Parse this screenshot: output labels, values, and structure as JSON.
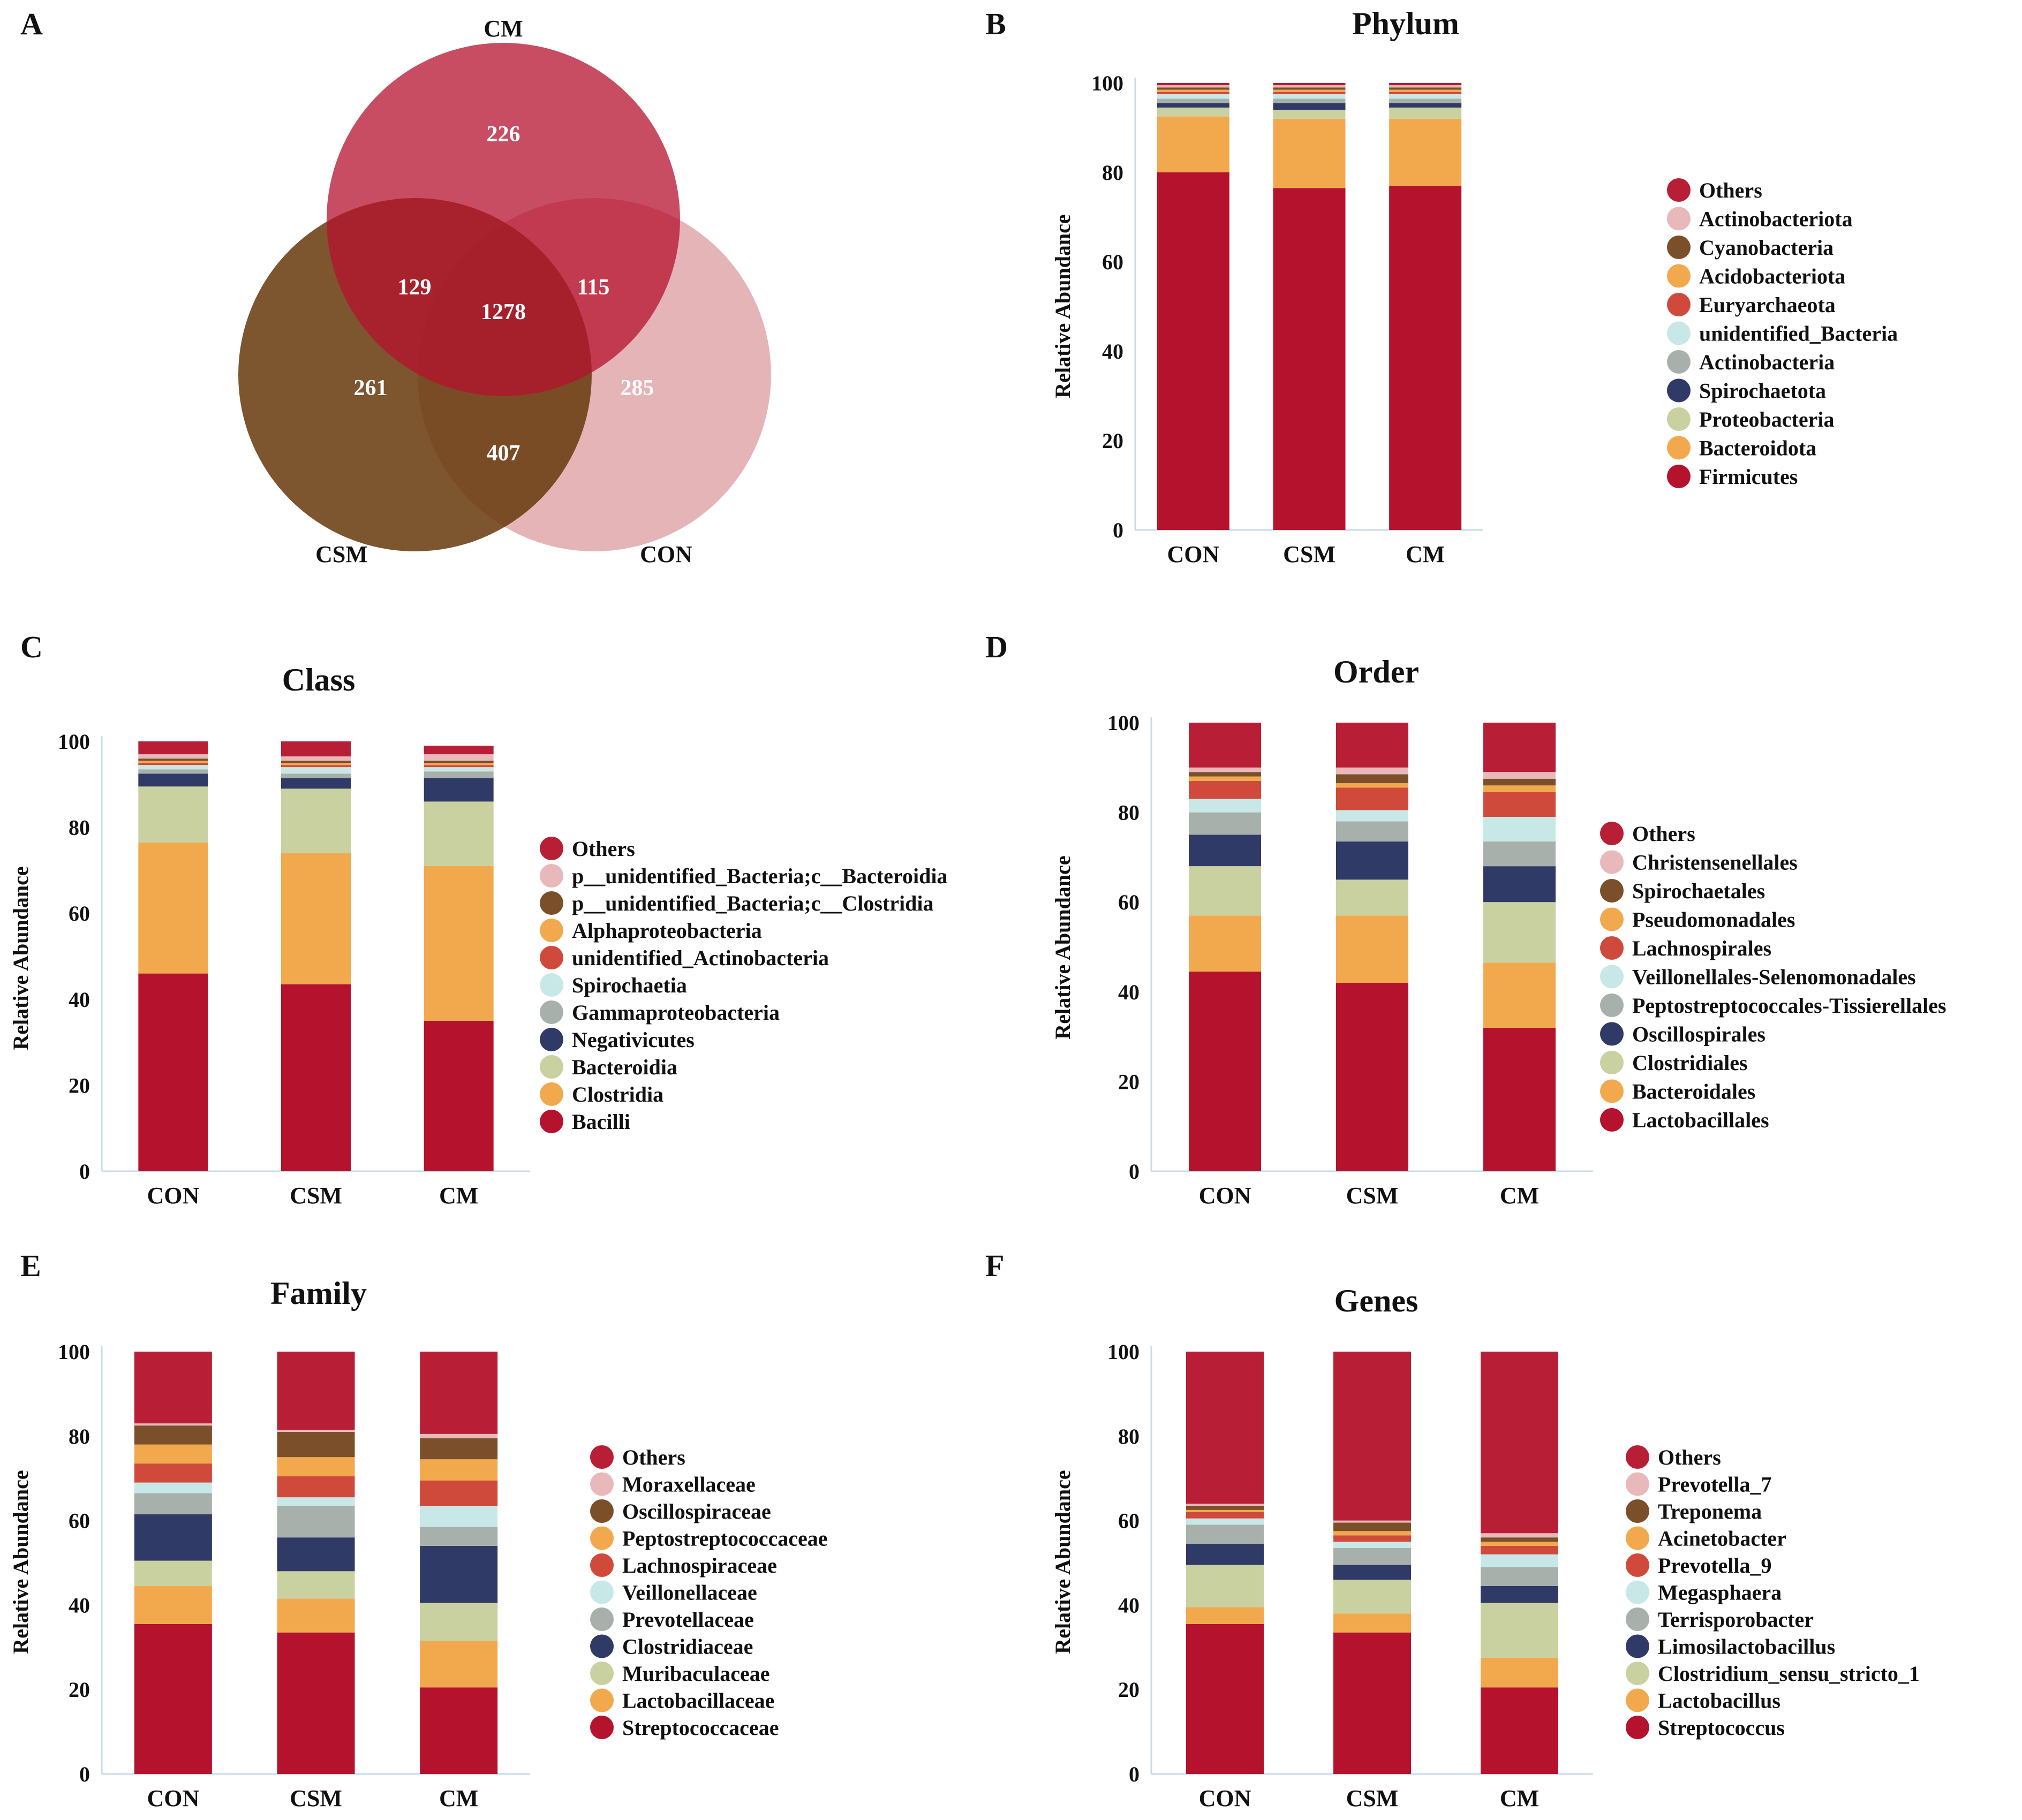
{
  "colors": [
    "#b5122e",
    "#f2a94e",
    "#c9d1a0",
    "#2f3a66",
    "#a8b0ac",
    "#c7e8e6",
    "#d04a3c",
    "#f2a94e",
    "#7a4f2a",
    "#e8b8ba",
    "#b81e35"
  ],
  "venn": {
    "panel": "A",
    "sets": [
      {
        "name": "CM",
        "color": "#b5122e"
      },
      {
        "name": "CSM",
        "color": "#6b3d12"
      },
      {
        "name": "CON",
        "color": "#e3aeb1"
      }
    ],
    "regions": {
      "cm_only": "226",
      "csm_only": "261",
      "con_only": "285",
      "cm_csm": "129",
      "cm_con": "115",
      "csm_con": "407",
      "all": "1278"
    }
  },
  "chart_data": [
    {
      "panel": "B",
      "type": "bar",
      "title": "Phylum",
      "ylabel": "Relative Abundance",
      "ylim": [
        0,
        100
      ],
      "yticks": [
        "0",
        "20",
        "40",
        "60",
        "80",
        "100"
      ],
      "categories": [
        "CON",
        "CSM",
        "CM"
      ],
      "series": [
        {
          "name": "Firmicutes",
          "values": [
            80,
            76.5,
            77
          ]
        },
        {
          "name": "Bacteroidota",
          "values": [
            12.5,
            15.5,
            15
          ]
        },
        {
          "name": "Proteobacteria",
          "values": [
            2,
            2,
            2.5
          ]
        },
        {
          "name": "Spirochaetota",
          "values": [
            1,
            1.5,
            1
          ]
        },
        {
          "name": "Actinobacteria",
          "values": [
            1,
            1,
            1
          ]
        },
        {
          "name": "unidentified_Bacteria",
          "values": [
            1,
            1,
            1
          ]
        },
        {
          "name": "Euryarchaeota",
          "values": [
            0.5,
            0.5,
            0.5
          ]
        },
        {
          "name": "Acidobacteriota",
          "values": [
            0.5,
            0.5,
            0.5
          ]
        },
        {
          "name": "Cyanobacteria",
          "values": [
            0.5,
            0.5,
            0.5
          ]
        },
        {
          "name": "Actinobacteriota",
          "values": [
            0.5,
            0.5,
            0.5
          ]
        },
        {
          "name": "Others",
          "values": [
            0.5,
            0.5,
            0.5
          ]
        }
      ],
      "legend": [
        "Others",
        "Actinobacteriota",
        "Cyanobacteria",
        "Acidobacteriota",
        "Euryarchaeota",
        "unidentified_Bacteria",
        "Actinobacteria",
        "Spirochaetota",
        "Proteobacteria",
        "Bacteroidota",
        "Firmicutes"
      ]
    },
    {
      "panel": "C",
      "type": "bar",
      "title": "Class",
      "ylabel": "Relative Abundance",
      "ylim": [
        0,
        100
      ],
      "yticks": [
        "0",
        "20",
        "40",
        "60",
        "80",
        "100"
      ],
      "categories": [
        "CON",
        "CSM",
        "CM"
      ],
      "series": [
        {
          "name": "Bacilli",
          "values": [
            46,
            43.5,
            35
          ]
        },
        {
          "name": "Clostridia",
          "values": [
            30.5,
            30.5,
            36
          ]
        },
        {
          "name": "Bacteroidia",
          "values": [
            13,
            15,
            15
          ]
        },
        {
          "name": "Negativicutes",
          "values": [
            3,
            2.5,
            5.5
          ]
        },
        {
          "name": "Gammaproteobacteria",
          "values": [
            1,
            1,
            1.5
          ]
        },
        {
          "name": "Spirochaetia",
          "values": [
            1,
            1.5,
            1
          ]
        },
        {
          "name": "unidentified_Actinobacteria",
          "values": [
            0.5,
            0.5,
            0.5
          ]
        },
        {
          "name": "Alphaproteobacteria",
          "values": [
            0.5,
            0.5,
            0.5
          ]
        },
        {
          "name": "p__unidentified_Bacteria;c__Clostridia",
          "values": [
            0.5,
            0.5,
            0.5
          ]
        },
        {
          "name": "p__unidentified_Bacteria;c__Bacteroidia",
          "values": [
            1,
            1,
            1.5
          ]
        },
        {
          "name": "Others",
          "values": [
            3,
            3.5,
            2
          ]
        }
      ],
      "legend": [
        "Others",
        "p__unidentified_Bacteria;c__Bacteroidia",
        "p__unidentified_Bacteria;c__Clostridia",
        "Alphaproteobacteria",
        "unidentified_Actinobacteria",
        "Spirochaetia",
        "Gammaproteobacteria",
        "Negativicutes",
        "Bacteroidia",
        "Clostridia",
        "Bacilli"
      ]
    },
    {
      "panel": "D",
      "type": "bar",
      "title": "Order",
      "ylabel": "Relative Abundance",
      "ylim": [
        0,
        100
      ],
      "yticks": [
        "0",
        "20",
        "40",
        "60",
        "80",
        "100"
      ],
      "categories": [
        "CON",
        "CSM",
        "CM"
      ],
      "series": [
        {
          "name": "Lactobacillales",
          "values": [
            44.5,
            42,
            32
          ]
        },
        {
          "name": "Bacteroidales",
          "values": [
            12.5,
            15,
            14.5
          ]
        },
        {
          "name": "Clostridiales",
          "values": [
            11,
            8,
            13.5
          ]
        },
        {
          "name": "Oscillospirales",
          "values": [
            7,
            8.5,
            8
          ]
        },
        {
          "name": "Peptostreptococcales-Tissierellales",
          "values": [
            5,
            4.5,
            5.5
          ]
        },
        {
          "name": "Veillonellales-Selenomonadales",
          "values": [
            3,
            2.5,
            5.5
          ]
        },
        {
          "name": "Lachnospirales",
          "values": [
            4,
            5,
            5.5
          ]
        },
        {
          "name": "Pseudomonadales",
          "values": [
            1,
            1,
            1.5
          ]
        },
        {
          "name": "Spirochaetales",
          "values": [
            1,
            2,
            1.5
          ]
        },
        {
          "name": "Christensenellales",
          "values": [
            1,
            1.5,
            1.5
          ]
        },
        {
          "name": "Others",
          "values": [
            10,
            10,
            11
          ]
        }
      ],
      "legend": [
        "Others",
        "Christensenellales",
        "Spirochaetales",
        "Pseudomonadales",
        "Lachnospirales",
        "Veillonellales-Selenomonadales",
        "Peptostreptococcales-Tissierellales",
        "Oscillospirales",
        "Clostridiales",
        "Bacteroidales",
        "Lactobacillales"
      ]
    },
    {
      "panel": "E",
      "type": "bar",
      "title": "Family",
      "ylabel": "Relative Abundance",
      "ylim": [
        0,
        100
      ],
      "yticks": [
        "0",
        "20",
        "40",
        "60",
        "80",
        "100"
      ],
      "categories": [
        "CON",
        "CSM",
        "CM"
      ],
      "series": [
        {
          "name": "Streptococcaceae",
          "values": [
            35.5,
            33.5,
            20.5
          ]
        },
        {
          "name": "Lactobacillaceae",
          "values": [
            9,
            8,
            11
          ]
        },
        {
          "name": "Muribaculaceae",
          "values": [
            6,
            6.5,
            9
          ]
        },
        {
          "name": "Clostridiaceae",
          "values": [
            11,
            8,
            13.5
          ]
        },
        {
          "name": "Prevotellaceae",
          "values": [
            5,
            7.5,
            4.5
          ]
        },
        {
          "name": "Veillonellaceae",
          "values": [
            2.5,
            2,
            5
          ]
        },
        {
          "name": "Lachnospiraceae",
          "values": [
            4.5,
            5,
            6
          ]
        },
        {
          "name": "Peptostreptococcaceae",
          "values": [
            4.5,
            4.5,
            5
          ]
        },
        {
          "name": "Oscillospiraceae",
          "values": [
            4.5,
            6,
            5
          ]
        },
        {
          "name": "Moraxellaceae",
          "values": [
            0.5,
            0.5,
            1
          ]
        },
        {
          "name": "Others",
          "values": [
            17,
            18.5,
            19.5
          ]
        }
      ],
      "legend": [
        "Others",
        "Moraxellaceae",
        "Oscillospiraceae",
        "Peptostreptococcaceae",
        "Lachnospiraceae",
        "Veillonellaceae",
        "Prevotellaceae",
        "Clostridiaceae",
        "Muribaculaceae",
        "Lactobacillaceae",
        "Streptococcaceae"
      ]
    },
    {
      "panel": "F",
      "type": "bar",
      "title": "Genes",
      "ylabel": "Relative Abundance",
      "ylim": [
        0,
        100
      ],
      "yticks": [
        "0",
        "20",
        "40",
        "60",
        "80",
        "100"
      ],
      "categories": [
        "CON",
        "CSM",
        "CM"
      ],
      "series": [
        {
          "name": "Streptococcus",
          "values": [
            35.5,
            33.5,
            20.5
          ]
        },
        {
          "name": "Lactobacillus",
          "values": [
            4,
            4.5,
            7
          ]
        },
        {
          "name": "Clostridium_sensu_stricto_1",
          "values": [
            10,
            8,
            13
          ]
        },
        {
          "name": "Limosilactobacillus",
          "values": [
            5,
            3.5,
            4
          ]
        },
        {
          "name": "Terrisporobacter",
          "values": [
            4.5,
            4,
            4.5
          ]
        },
        {
          "name": "Megasphaera",
          "values": [
            1.5,
            1.5,
            3
          ]
        },
        {
          "name": "Prevotella_9",
          "values": [
            1.5,
            1.5,
            2
          ]
        },
        {
          "name": "Acinetobacter",
          "values": [
            0.5,
            1,
            1
          ]
        },
        {
          "name": "Treponema",
          "values": [
            1,
            2,
            1
          ]
        },
        {
          "name": "Prevotella_7",
          "values": [
            0.5,
            0.5,
            1
          ]
        },
        {
          "name": "Others",
          "values": [
            36,
            40,
            43
          ]
        }
      ],
      "legend": [
        "Others",
        "Prevotella_7",
        "Treponema",
        "Acinetobacter",
        "Prevotella_9",
        "Megasphaera",
        "Terrisporobacter",
        "Limosilactobacillus",
        "Clostridium_sensu_stricto_1",
        "Lactobacillus",
        "Streptococcus"
      ]
    }
  ]
}
